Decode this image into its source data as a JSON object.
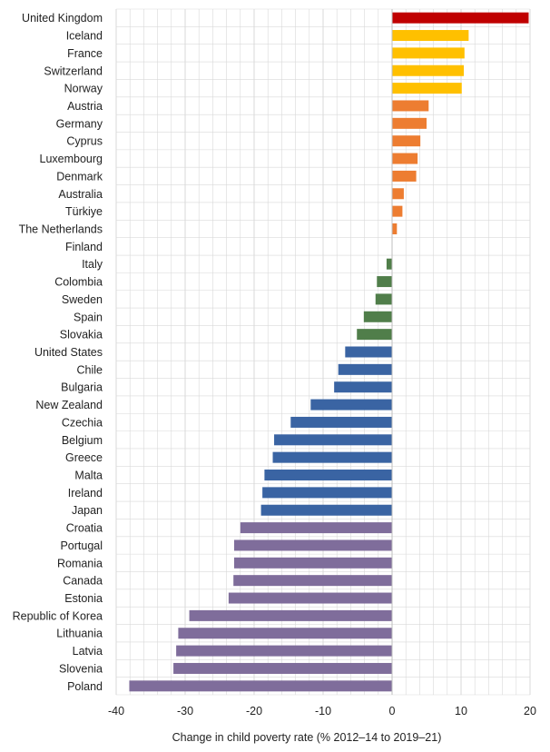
{
  "chart_data": {
    "type": "bar",
    "orientation": "horizontal",
    "title": "",
    "xlabel": "Change in child poverty rate (% 2012–14 to 2019–21)",
    "ylabel": "",
    "xlim": [
      -40,
      20
    ],
    "xticks": [
      -40,
      -30,
      -20,
      -10,
      0,
      10,
      20
    ],
    "xtick_labels": [
      "-40",
      "-30",
      "-20",
      "-10",
      "0",
      "10",
      "20"
    ],
    "grid": true,
    "legend": "none",
    "categories": [
      "United Kingdom",
      "Iceland",
      "France",
      "Switzerland",
      "Norway",
      "Austria",
      "Germany",
      "Cyprus",
      "Luxembourg",
      "Denmark",
      "Australia",
      "Türkiye",
      "The Netherlands",
      "Finland",
      "Italy",
      "Colombia",
      "Sweden",
      "Spain",
      "Slovakia",
      "United States",
      "Chile",
      "Bulgaria",
      "New Zealand",
      "Czechia",
      "Belgium",
      "Greece",
      "Malta",
      "Ireland",
      "Japan",
      "Croatia",
      "Portugal",
      "Romania",
      "Canada",
      "Estonia",
      "Republic of Korea",
      "Lithuania",
      "Latvia",
      "Slovenia",
      "Poland"
    ],
    "values": [
      19.8,
      11.1,
      10.5,
      10.4,
      10.1,
      5.3,
      5.0,
      4.1,
      3.7,
      3.5,
      1.7,
      1.5,
      0.7,
      0.0,
      -0.8,
      -2.2,
      -2.4,
      -4.1,
      -5.1,
      -6.8,
      -7.8,
      -8.4,
      -11.8,
      -14.7,
      -17.1,
      -17.3,
      -18.5,
      -18.8,
      -19.0,
      -22.0,
      -22.9,
      -22.9,
      -23.0,
      -23.7,
      -29.4,
      -31.0,
      -31.3,
      -31.7,
      -38.1
    ],
    "colors": [
      "#c00000",
      "#ffc000",
      "#ffc000",
      "#ffc000",
      "#ffc000",
      "#ed7d31",
      "#ed7d31",
      "#ed7d31",
      "#ed7d31",
      "#ed7d31",
      "#ed7d31",
      "#ed7d31",
      "#ed7d31",
      "#ed7d31",
      "#507e4a",
      "#507e4a",
      "#507e4a",
      "#507e4a",
      "#507e4a",
      "#3a64a3",
      "#3a64a3",
      "#3a64a3",
      "#3a64a3",
      "#3a64a3",
      "#3a64a3",
      "#3a64a3",
      "#3a64a3",
      "#3a64a3",
      "#3a64a3",
      "#7f6d9b",
      "#7f6d9b",
      "#7f6d9b",
      "#7f6d9b",
      "#7f6d9b",
      "#7f6d9b",
      "#7f6d9b",
      "#7f6d9b",
      "#7f6d9b",
      "#7f6d9b"
    ],
    "grid_color": "#d9d9d9",
    "axis_color": "#bfbfbf"
  }
}
